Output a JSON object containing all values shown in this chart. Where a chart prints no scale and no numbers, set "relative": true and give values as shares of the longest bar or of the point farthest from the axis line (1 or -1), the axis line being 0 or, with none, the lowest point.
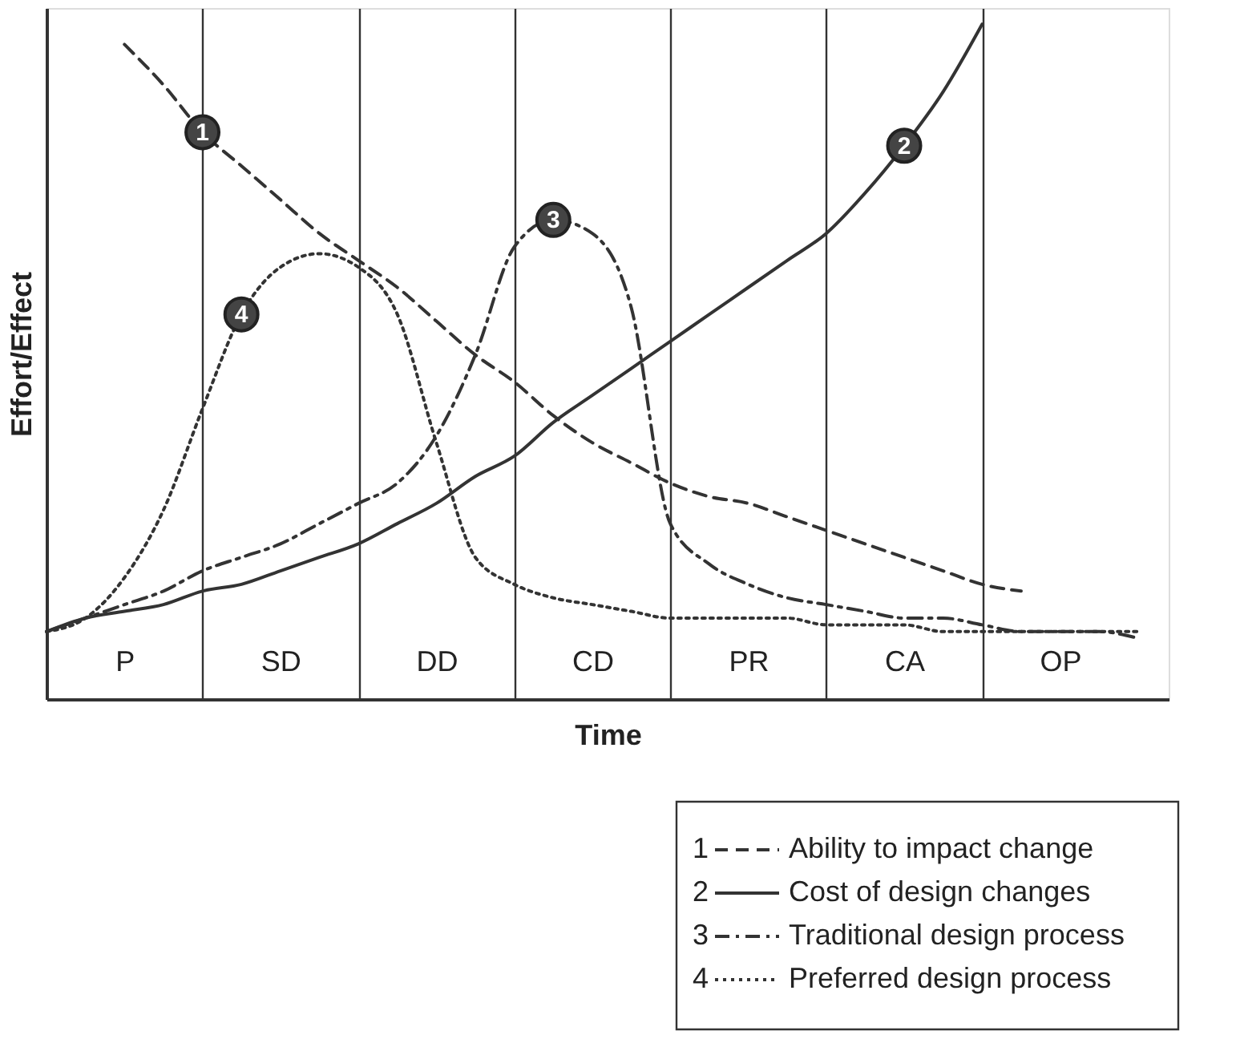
{
  "chart_data": {
    "type": "line",
    "relative": true,
    "xlabel": "Time",
    "ylabel": "Effort/Effect",
    "categories": [
      null,
      null,
      "P",
      null,
      null,
      null,
      "SD",
      null,
      null,
      null,
      "DD",
      null,
      null,
      null,
      "CD",
      null,
      null,
      null,
      "PR",
      null,
      null,
      null,
      "CA",
      null,
      null,
      null,
      "OP",
      null,
      null
    ],
    "series": [
      {
        "name": "Ability to impact change",
        "color": "#333333",
        "line_style": "dashed",
        "values": [
          null,
          null,
          0.97,
          0.91,
          0.84,
          0.79,
          0.74,
          0.69,
          0.65,
          0.61,
          0.56,
          0.51,
          0.47,
          0.42,
          0.38,
          0.35,
          0.32,
          0.3,
          0.29,
          0.27,
          0.25,
          0.23,
          0.21,
          0.19,
          0.17,
          0.16,
          null,
          null,
          null
        ]
      },
      {
        "name": "Cost of design changes",
        "color": "#333333",
        "line_style": "solid",
        "values": [
          0.1,
          0.12,
          0.13,
          0.14,
          0.16,
          0.17,
          0.19,
          0.21,
          0.23,
          0.26,
          0.29,
          0.33,
          0.36,
          0.41,
          0.45,
          0.49,
          0.53,
          0.57,
          0.61,
          0.65,
          0.69,
          0.75,
          0.82,
          0.9,
          1.0,
          null,
          null,
          null,
          null
        ]
      },
      {
        "name": "Traditional design process",
        "color": "#333333",
        "line_style": "dashdot",
        "values": [
          0.1,
          0.12,
          0.14,
          0.16,
          0.19,
          0.21,
          0.23,
          0.26,
          0.29,
          0.32,
          0.39,
          0.51,
          0.67,
          0.71,
          0.69,
          0.58,
          0.26,
          0.2,
          0.17,
          0.15,
          0.14,
          0.13,
          0.12,
          0.12,
          0.11,
          0.1,
          0.1,
          0.1,
          0.09
        ]
      },
      {
        "name": "Preferred design process",
        "color": "#333333",
        "line_style": "dotted",
        "values": [
          0.1,
          0.12,
          0.18,
          0.28,
          0.43,
          0.57,
          0.64,
          0.66,
          0.64,
          0.57,
          0.38,
          0.21,
          0.17,
          0.15,
          0.14,
          0.13,
          0.12,
          0.12,
          0.12,
          0.12,
          0.11,
          0.11,
          0.11,
          0.1,
          0.1,
          0.1,
          0.1,
          0.1,
          0.1
        ]
      }
    ],
    "annotations": [
      {
        "text": "1",
        "y": 0.84
      },
      {
        "text": "2",
        "y": 0.82
      },
      {
        "text": "3",
        "y": 0.71
      },
      {
        "text": "4",
        "y": 0.57
      }
    ],
    "grid": "x",
    "legend": "bottom right"
  }
}
